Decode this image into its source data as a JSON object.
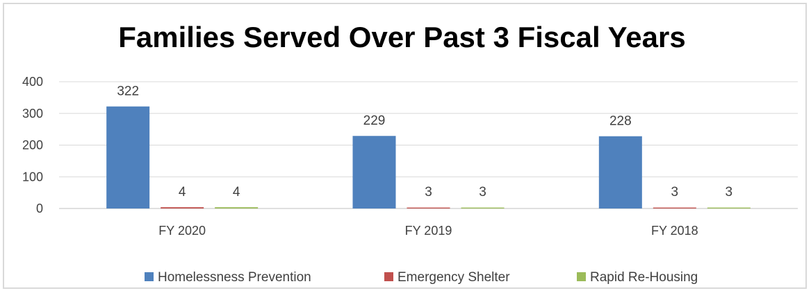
{
  "chart_data": {
    "type": "bar",
    "title": "Families Served Over Past 3 Fiscal Years",
    "categories": [
      "FY 2020",
      "FY 2019",
      "FY 2018"
    ],
    "series": [
      {
        "name": "Homelessness Prevention",
        "values": [
          322,
          229,
          228
        ],
        "color": "#4f81bd"
      },
      {
        "name": "Emergency Shelter",
        "values": [
          4,
          3,
          3
        ],
        "color": "#c0504d"
      },
      {
        "name": "Rapid Re-Housing",
        "values": [
          4,
          3,
          3
        ],
        "color": "#9bbb59"
      }
    ],
    "yticks": [
      0,
      100,
      200,
      300,
      400
    ],
    "ylim": [
      0,
      400
    ],
    "grid": true,
    "legend_position": "bottom",
    "data_labels": true
  }
}
